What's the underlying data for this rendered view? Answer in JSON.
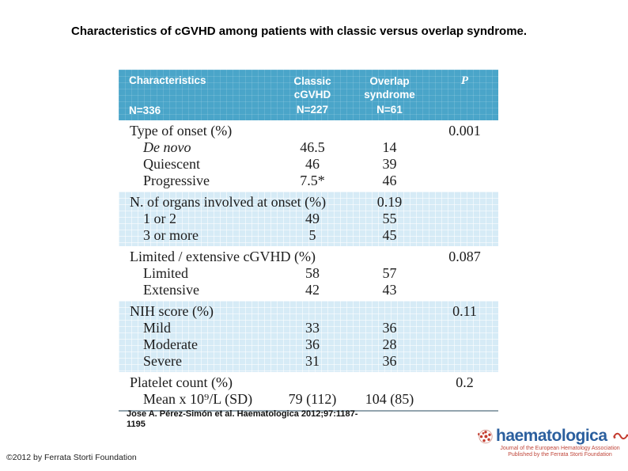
{
  "slide": {
    "title": "Characteristics of cGVHD among patients with classic versus overlap syndrome.",
    "citation_line1": "Jose A. Pérez-Simón et al. Haematologica 2012;97:1187-",
    "citation_line2": "1195",
    "copyright": "©2012 by Ferrata Storti Foundation"
  },
  "table": {
    "header": {
      "col1_title": "Characteristics",
      "col1_n": "N=336",
      "col2_line1": "Classic",
      "col2_line2": "cGVHD",
      "col2_n": "N=227",
      "col3_line1": "Overlap",
      "col3_line2": "syndrome",
      "col3_n": "N=61",
      "col4_p": "P"
    },
    "sections": [
      {
        "shaded": false,
        "rows": [
          {
            "label": "Type of onset (%)",
            "classic": "",
            "overlap": "",
            "p": "0.001",
            "indent": false,
            "italic": false
          },
          {
            "label": "De novo",
            "classic": "46.5",
            "overlap": "14",
            "p": "",
            "indent": true,
            "italic": true
          },
          {
            "label": "Quiescent",
            "classic": "46",
            "overlap": "39",
            "p": "",
            "indent": true,
            "italic": false
          },
          {
            "label": "Progressive",
            "classic": "7.5*",
            "overlap": "46",
            "p": "",
            "indent": true,
            "italic": false
          }
        ]
      },
      {
        "shaded": true,
        "rows": [
          {
            "label": "N. of organs involved at onset (%)",
            "classic": "",
            "overlap": "0.19",
            "p": "",
            "indent": false,
            "italic": false
          },
          {
            "label": "1 or 2",
            "classic": "49",
            "overlap": "55",
            "p": "",
            "indent": true,
            "italic": false
          },
          {
            "label": "3 or more",
            "classic": "5",
            "overlap": "45",
            "p": "",
            "indent": true,
            "italic": false
          }
        ]
      },
      {
        "shaded": false,
        "rows": [
          {
            "label": "Limited / extensive cGVHD (%)",
            "classic": "",
            "overlap": "",
            "p": "0.087",
            "indent": false,
            "italic": false
          },
          {
            "label": "Limited",
            "classic": "58",
            "overlap": "57",
            "p": "",
            "indent": true,
            "italic": false
          },
          {
            "label": "Extensive",
            "classic": "42",
            "overlap": "43",
            "p": "",
            "indent": true,
            "italic": false
          }
        ]
      },
      {
        "shaded": true,
        "rows": [
          {
            "label": "NIH score (%)",
            "classic": "",
            "overlap": "",
            "p": "0.11",
            "indent": false,
            "italic": false
          },
          {
            "label": "Mild",
            "classic": "33",
            "overlap": "36",
            "p": "",
            "indent": true,
            "italic": false
          },
          {
            "label": "Moderate",
            "classic": "36",
            "overlap": "28",
            "p": "",
            "indent": true,
            "italic": false
          },
          {
            "label": "Severe",
            "classic": "31",
            "overlap": "36",
            "p": "",
            "indent": true,
            "italic": false
          }
        ]
      },
      {
        "shaded": false,
        "rows": [
          {
            "label": "Platelet count (%)",
            "classic": "",
            "overlap": "",
            "p": "0.2",
            "indent": false,
            "italic": false
          },
          {
            "label": "Mean x 10⁹/L (SD)",
            "classic": "79 (112)",
            "overlap": "104 (85)",
            "p": "",
            "indent": true,
            "italic": false
          }
        ]
      }
    ]
  },
  "logo": {
    "wordmark": "haematologica",
    "tagline_line1": "Journal of the European Hematology Association",
    "tagline_line2": "Published by the Ferrata Storti Foundation",
    "mark_icon": "haematologica-cells-icon",
    "flourish_icon": "red-flourish-icon"
  },
  "colors": {
    "table_header_bg": "#4aa5c9",
    "table_band_bg": "#d6ebf6",
    "table_border": "#93a4ae",
    "logo_blue": "#2b5f9e",
    "logo_red": "#c0463a"
  }
}
